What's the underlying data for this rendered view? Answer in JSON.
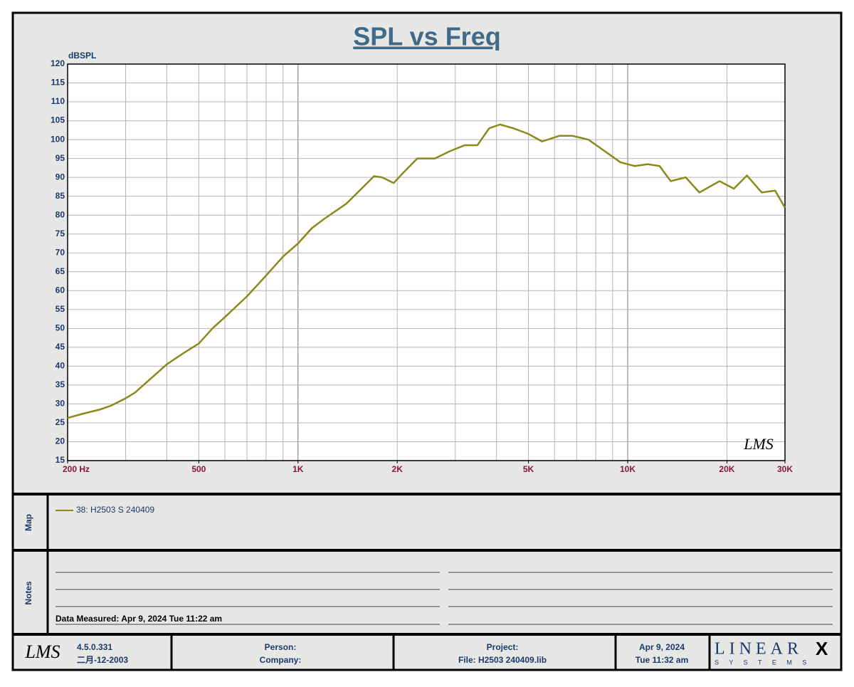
{
  "chart_data": {
    "type": "line",
    "title": "SPL vs Freq",
    "y_label": "dBSPL",
    "x_scale": "log",
    "grid": true,
    "minor_grid": true,
    "xlim": [
      200,
      30000
    ],
    "xticks": [
      {
        "value": 200,
        "label": "200  Hz"
      },
      {
        "value": 500,
        "label": "500"
      },
      {
        "value": 1000,
        "label": "1K"
      },
      {
        "value": 2000,
        "label": "2K"
      },
      {
        "value": 5000,
        "label": "5K"
      },
      {
        "value": 10000,
        "label": "10K"
      },
      {
        "value": 20000,
        "label": "20K"
      },
      {
        "value": 30000,
        "label": "30K"
      }
    ],
    "ylim": [
      15,
      120
    ],
    "yticks": [
      15,
      20,
      25,
      30,
      35,
      40,
      45,
      50,
      55,
      60,
      65,
      70,
      75,
      80,
      85,
      90,
      95,
      100,
      105,
      110,
      115,
      120
    ],
    "x": [
      200,
      220,
      250,
      270,
      300,
      320,
      350,
      400,
      450,
      500,
      550,
      600,
      700,
      800,
      900,
      1000,
      1100,
      1200,
      1400,
      1600,
      1700,
      1800,
      1950,
      2100,
      2300,
      2600,
      2900,
      3200,
      3500,
      3800,
      4100,
      4500,
      5000,
      5500,
      6200,
      6800,
      7600,
      8500,
      9500,
      10500,
      11500,
      12500,
      13500,
      15000,
      16500,
      19000,
      21000,
      23000,
      25500,
      28000,
      30000
    ],
    "series": [
      {
        "name": "38: H2503 S 240409",
        "color": "#8a8a1c",
        "values": [
          26.3,
          27.3,
          28.5,
          29.5,
          31.5,
          33,
          36,
          40.5,
          43.5,
          46,
          50,
          53,
          58.5,
          64,
          69,
          72.5,
          76.5,
          79,
          83,
          88,
          90.3,
          90,
          88.5,
          91.5,
          95,
          95,
          97,
          98.5,
          98.5,
          103,
          104,
          103,
          101.5,
          99.5,
          101,
          101,
          100,
          97,
          94,
          93,
          93.5,
          93,
          89,
          90,
          86,
          89,
          87,
          90.5,
          86,
          86.5,
          82
        ]
      }
    ],
    "watermark": "LMS"
  },
  "map_panel": {
    "label": "Map"
  },
  "notes_panel": {
    "label": "Notes",
    "measured": "Data Measured: Apr  9, 2024  Tue 11:22 am"
  },
  "footer": {
    "logo": "LMS",
    "version": "4.5.0.331",
    "build_date": "二月-12-2003",
    "person": "Person:",
    "company": "Company:",
    "project": "Project:",
    "file": "File: H2503 240409.lib",
    "date": "Apr  9, 2024",
    "time": "Tue 11:32 am",
    "brand": "LINEAR",
    "brand_mark": "X",
    "brand_sub": "S Y S T E M S"
  }
}
